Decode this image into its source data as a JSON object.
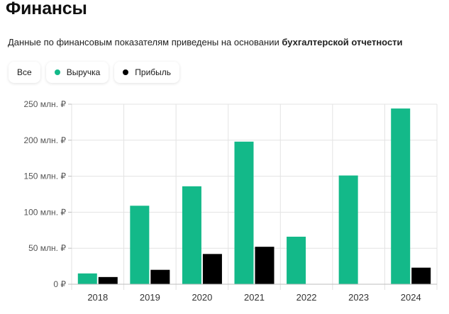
{
  "header": {
    "title": "Финансы",
    "subtitle_prefix": "Данные по финансовым показателям приведены на основании ",
    "subtitle_emphasis": "бухгалтерской отчетности"
  },
  "filters": [
    {
      "label": "Все",
      "color": null
    },
    {
      "label": "Выручка",
      "color": "#13b989"
    },
    {
      "label": "Прибыль",
      "color": "#000000"
    }
  ],
  "chart_data": {
    "type": "bar",
    "categories": [
      "2018",
      "2019",
      "2020",
      "2021",
      "2022",
      "2023",
      "2024"
    ],
    "series": [
      {
        "name": "Выручка",
        "color": "#13b989",
        "values": [
          15,
          109,
          136,
          198,
          66,
          151,
          244
        ]
      },
      {
        "name": "Прибыль",
        "color": "#000000",
        "values": [
          10,
          20,
          42,
          52,
          0,
          0,
          23
        ]
      }
    ],
    "ylim": [
      0,
      250
    ],
    "yticks": [
      0,
      50,
      100,
      150,
      200,
      250
    ],
    "ytick_labels": [
      "0 ₽",
      "50 млн. ₽",
      "100 млн. ₽",
      "150 млн. ₽",
      "200 млн. ₽",
      "250 млн. ₽"
    ],
    "xlabel": "",
    "ylabel": "",
    "grid": true
  }
}
